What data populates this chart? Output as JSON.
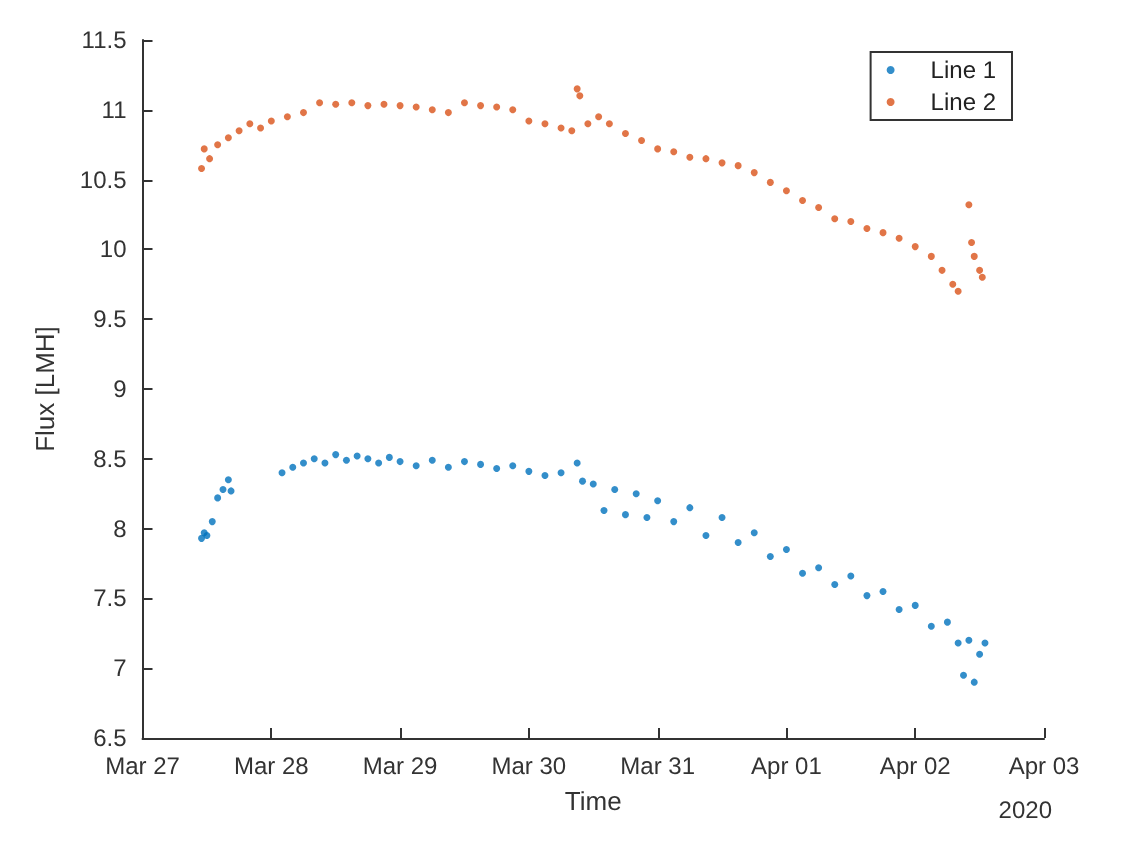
{
  "chart_data": {
    "type": "scatter",
    "xlabel": "Time",
    "ylabel": "Flux [LMH]",
    "annotations": [
      "2020"
    ],
    "xlim": [
      "2020-03-27",
      "2020-04-03"
    ],
    "xticks": [
      {
        "value": "2020-03-27",
        "label": "Mar 27"
      },
      {
        "value": "2020-03-28",
        "label": "Mar 28"
      },
      {
        "value": "2020-03-29",
        "label": "Mar 29"
      },
      {
        "value": "2020-03-30",
        "label": "Mar 30"
      },
      {
        "value": "2020-03-31",
        "label": "Mar 31"
      },
      {
        "value": "2020-04-01",
        "label": "Apr 01"
      },
      {
        "value": "2020-04-02",
        "label": "Apr 02"
      },
      {
        "value": "2020-04-03",
        "label": "Apr 03"
      }
    ],
    "ylim": [
      6.5,
      11.5
    ],
    "yticks": [
      6.5,
      7,
      7.5,
      8,
      8.5,
      9,
      9.5,
      10,
      10.5,
      11,
      11.5
    ],
    "grid": false,
    "legend": "top right",
    "marker": "circle",
    "series": [
      {
        "name": "Line 1",
        "color": "#0072bd",
        "x": [
          "2020-03-27T11:00",
          "2020-03-27T11:30",
          "2020-03-27T12:00",
          "2020-03-27T13:00",
          "2020-03-27T14:00",
          "2020-03-27T15:00",
          "2020-03-27T16:00",
          "2020-03-27T16:30",
          "2020-03-28T02:00",
          "2020-03-28T04:00",
          "2020-03-28T06:00",
          "2020-03-28T08:00",
          "2020-03-28T10:00",
          "2020-03-28T12:00",
          "2020-03-28T14:00",
          "2020-03-28T16:00",
          "2020-03-28T18:00",
          "2020-03-28T20:00",
          "2020-03-28T22:00",
          "2020-03-29T00:00",
          "2020-03-29T03:00",
          "2020-03-29T06:00",
          "2020-03-29T09:00",
          "2020-03-29T12:00",
          "2020-03-29T15:00",
          "2020-03-29T18:00",
          "2020-03-29T21:00",
          "2020-03-30T00:00",
          "2020-03-30T03:00",
          "2020-03-30T06:00",
          "2020-03-30T09:00",
          "2020-03-30T10:00",
          "2020-03-30T12:00",
          "2020-03-30T14:00",
          "2020-03-30T16:00",
          "2020-03-30T18:00",
          "2020-03-30T20:00",
          "2020-03-30T22:00",
          "2020-03-31T00:00",
          "2020-03-31T03:00",
          "2020-03-31T06:00",
          "2020-03-31T09:00",
          "2020-03-31T12:00",
          "2020-03-31T15:00",
          "2020-03-31T18:00",
          "2020-03-31T21:00",
          "2020-04-01T00:00",
          "2020-04-01T03:00",
          "2020-04-01T06:00",
          "2020-04-01T09:00",
          "2020-04-01T12:00",
          "2020-04-01T15:00",
          "2020-04-01T18:00",
          "2020-04-01T21:00",
          "2020-04-02T00:00",
          "2020-04-02T03:00",
          "2020-04-02T06:00",
          "2020-04-02T08:00",
          "2020-04-02T09:00",
          "2020-04-02T10:00",
          "2020-04-02T11:00",
          "2020-04-02T12:00",
          "2020-04-02T13:00"
        ],
        "values": [
          7.93,
          7.97,
          7.95,
          8.05,
          8.22,
          8.28,
          8.35,
          8.27,
          8.4,
          8.44,
          8.47,
          8.5,
          8.47,
          8.53,
          8.49,
          8.52,
          8.5,
          8.47,
          8.51,
          8.48,
          8.45,
          8.49,
          8.44,
          8.48,
          8.46,
          8.43,
          8.45,
          8.41,
          8.38,
          8.4,
          8.47,
          8.34,
          8.32,
          8.13,
          8.28,
          8.1,
          8.25,
          8.08,
          8.2,
          8.05,
          8.15,
          7.95,
          8.08,
          7.9,
          7.97,
          7.8,
          7.85,
          7.68,
          7.72,
          7.6,
          7.66,
          7.52,
          7.55,
          7.42,
          7.45,
          7.3,
          7.33,
          7.18,
          6.95,
          7.2,
          6.9,
          7.1,
          7.18
        ]
      },
      {
        "name": "Line 2",
        "color": "#d95319",
        "x": [
          "2020-03-27T11:00",
          "2020-03-27T11:30",
          "2020-03-27T12:30",
          "2020-03-27T14:00",
          "2020-03-27T16:00",
          "2020-03-27T18:00",
          "2020-03-27T20:00",
          "2020-03-27T22:00",
          "2020-03-28T00:00",
          "2020-03-28T03:00",
          "2020-03-28T06:00",
          "2020-03-28T09:00",
          "2020-03-28T12:00",
          "2020-03-28T15:00",
          "2020-03-28T18:00",
          "2020-03-28T21:00",
          "2020-03-29T00:00",
          "2020-03-29T03:00",
          "2020-03-29T06:00",
          "2020-03-29T09:00",
          "2020-03-29T12:00",
          "2020-03-29T15:00",
          "2020-03-29T18:00",
          "2020-03-29T21:00",
          "2020-03-30T00:00",
          "2020-03-30T03:00",
          "2020-03-30T06:00",
          "2020-03-30T08:00",
          "2020-03-30T09:00",
          "2020-03-30T09:30",
          "2020-03-30T11:00",
          "2020-03-30T13:00",
          "2020-03-30T15:00",
          "2020-03-30T18:00",
          "2020-03-30T21:00",
          "2020-03-31T00:00",
          "2020-03-31T03:00",
          "2020-03-31T06:00",
          "2020-03-31T09:00",
          "2020-03-31T12:00",
          "2020-03-31T15:00",
          "2020-03-31T18:00",
          "2020-03-31T21:00",
          "2020-04-01T00:00",
          "2020-04-01T03:00",
          "2020-04-01T06:00",
          "2020-04-01T09:00",
          "2020-04-01T12:00",
          "2020-04-01T15:00",
          "2020-04-01T18:00",
          "2020-04-01T21:00",
          "2020-04-02T00:00",
          "2020-04-02T03:00",
          "2020-04-02T05:00",
          "2020-04-02T07:00",
          "2020-04-02T08:00",
          "2020-04-02T10:00",
          "2020-04-02T10:30",
          "2020-04-02T11:00",
          "2020-04-02T12:00",
          "2020-04-02T12:30"
        ],
        "values": [
          10.58,
          10.72,
          10.65,
          10.75,
          10.8,
          10.85,
          10.9,
          10.87,
          10.92,
          10.95,
          10.98,
          11.05,
          11.04,
          11.05,
          11.03,
          11.04,
          11.03,
          11.02,
          11.0,
          10.98,
          11.05,
          11.03,
          11.02,
          11.0,
          10.92,
          10.9,
          10.87,
          10.85,
          11.15,
          11.1,
          10.9,
          10.95,
          10.9,
          10.83,
          10.78,
          10.72,
          10.7,
          10.66,
          10.65,
          10.62,
          10.6,
          10.55,
          10.48,
          10.42,
          10.35,
          10.3,
          10.22,
          10.2,
          10.15,
          10.12,
          10.08,
          10.02,
          9.95,
          9.85,
          9.75,
          9.7,
          10.32,
          10.05,
          9.95,
          9.85,
          9.8
        ]
      }
    ]
  }
}
